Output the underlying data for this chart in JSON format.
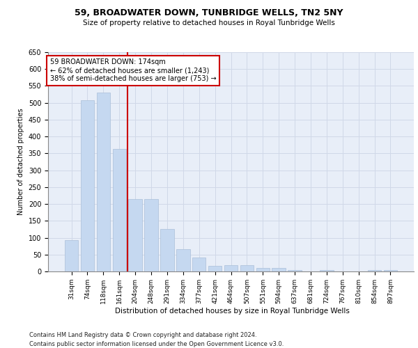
{
  "title": "59, BROADWATER DOWN, TUNBRIDGE WELLS, TN2 5NY",
  "subtitle": "Size of property relative to detached houses in Royal Tunbridge Wells",
  "xlabel": "Distribution of detached houses by size in Royal Tunbridge Wells",
  "ylabel": "Number of detached properties",
  "footnote1": "Contains HM Land Registry data © Crown copyright and database right 2024.",
  "footnote2": "Contains public sector information licensed under the Open Government Licence v3.0.",
  "annotation_line1": "59 BROADWATER DOWN: 174sqm",
  "annotation_line2": "← 62% of detached houses are smaller (1,243)",
  "annotation_line3": "38% of semi-detached houses are larger (753) →",
  "bar_color": "#c5d8f0",
  "bar_edge_color": "#aabfd8",
  "vline_color": "#cc0000",
  "categories": [
    "31sqm",
    "74sqm",
    "118sqm",
    "161sqm",
    "204sqm",
    "248sqm",
    "291sqm",
    "334sqm",
    "377sqm",
    "421sqm",
    "464sqm",
    "507sqm",
    "551sqm",
    "594sqm",
    "637sqm",
    "681sqm",
    "724sqm",
    "767sqm",
    "810sqm",
    "854sqm",
    "897sqm"
  ],
  "values": [
    92,
    507,
    530,
    363,
    215,
    215,
    125,
    67,
    42,
    17,
    18,
    18,
    10,
    10,
    5,
    1,
    4,
    1,
    0,
    4,
    4
  ],
  "ylim": [
    0,
    650
  ],
  "yticks": [
    0,
    50,
    100,
    150,
    200,
    250,
    300,
    350,
    400,
    450,
    500,
    550,
    600,
    650
  ],
  "grid_color": "#d0d8e8",
  "background_color": "#e8eef8",
  "fig_background": "#ffffff",
  "vline_index": 3.5
}
